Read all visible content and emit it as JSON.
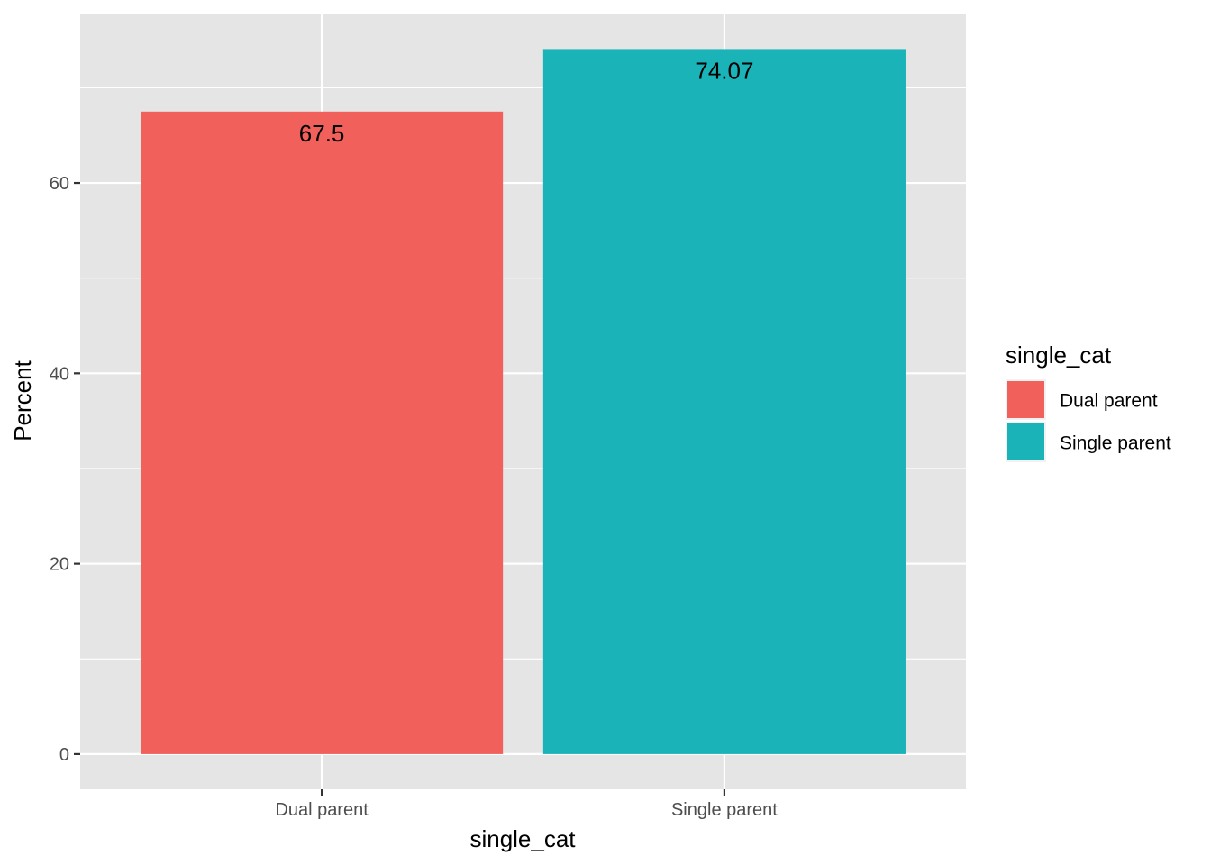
{
  "chart_data": {
    "type": "bar",
    "categories": [
      "Dual parent",
      "Single parent"
    ],
    "values": [
      67.5,
      74.07
    ],
    "data_labels": [
      "67.5",
      "74.07"
    ],
    "colors": [
      "#F2605C",
      "#1AB3B8"
    ],
    "xlabel": "single_cat",
    "ylabel": "Percent",
    "ylim": [
      -3.7,
      77.8
    ],
    "y_ticks": [
      0,
      20,
      40,
      60
    ],
    "y_tick_labels": [
      "0",
      "20",
      "40",
      "60"
    ],
    "grid": true,
    "legend": {
      "title": "single_cat",
      "position": "right",
      "entries": [
        "Dual parent",
        "Single parent"
      ]
    }
  }
}
